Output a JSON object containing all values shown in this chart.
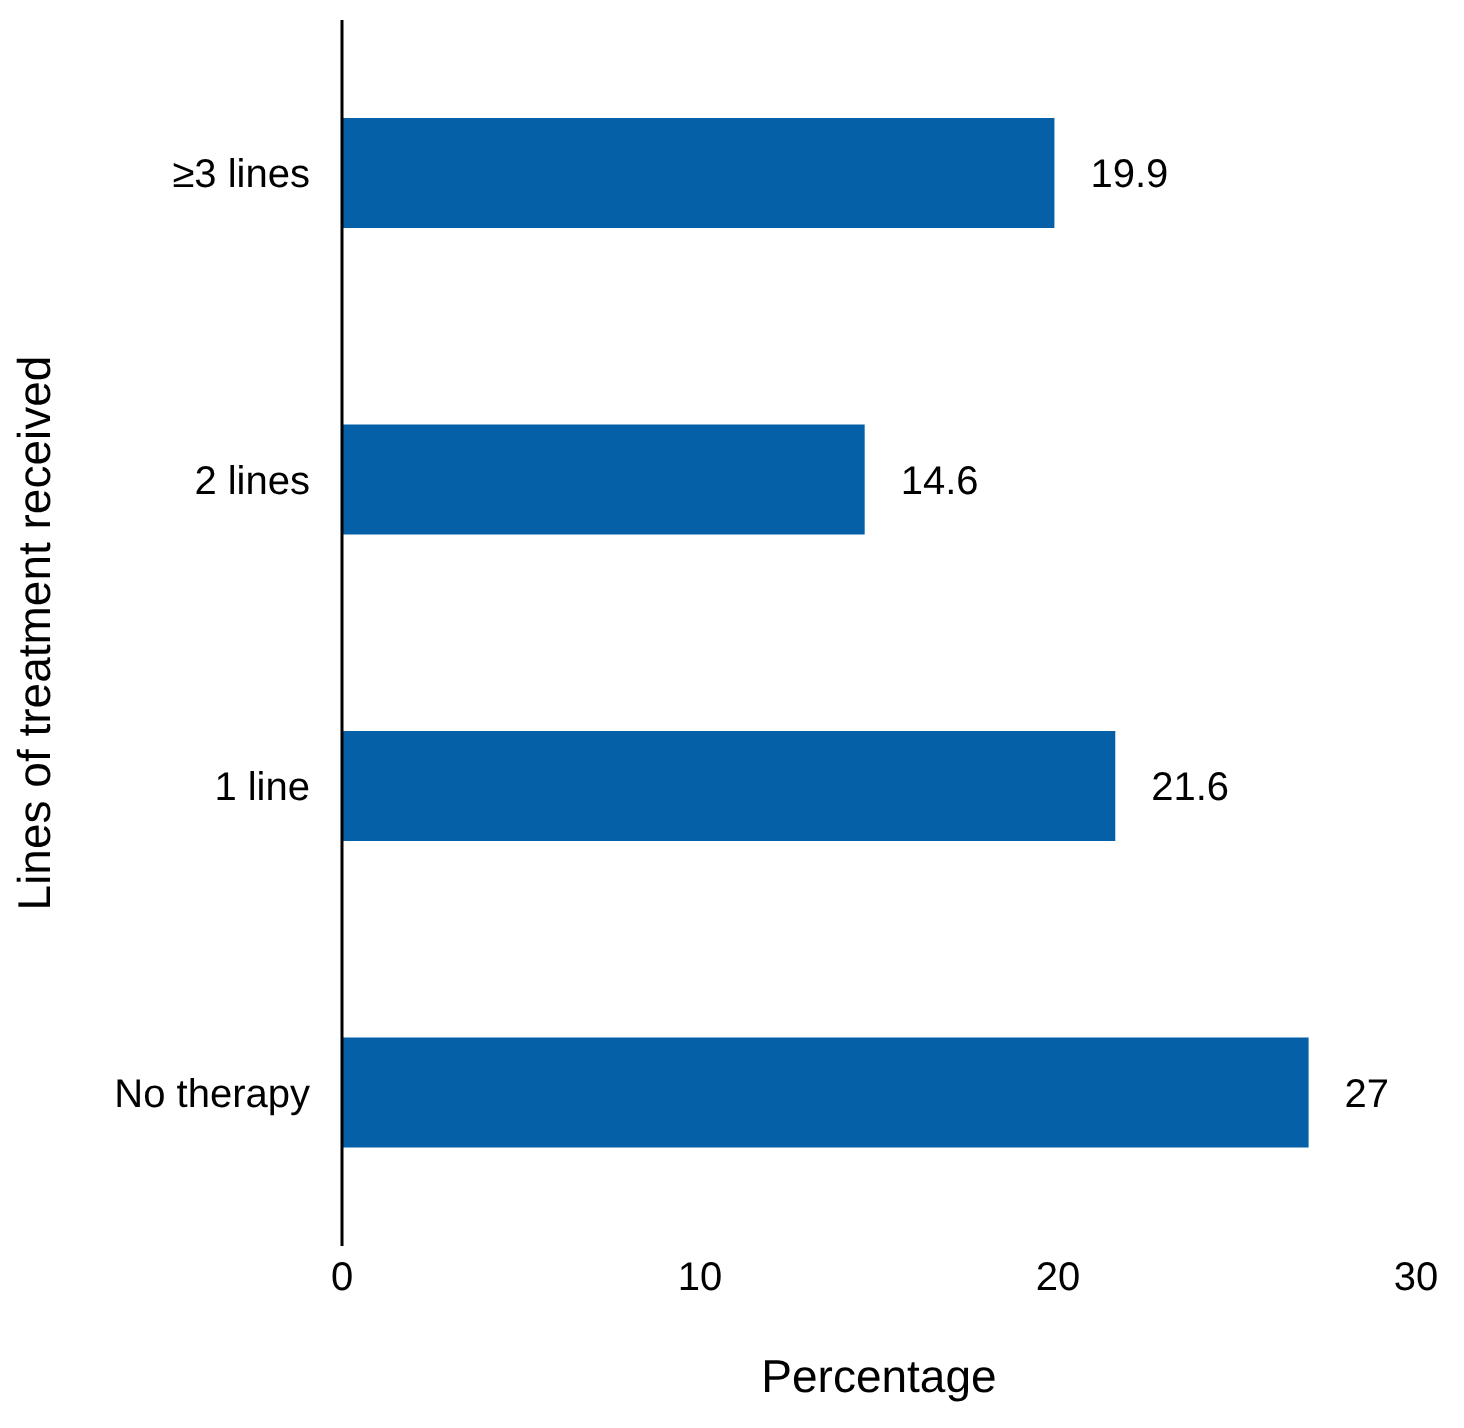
{
  "chart_data": {
    "type": "bar",
    "orientation": "horizontal",
    "xlabel": "Percentage",
    "ylabel": "Lines of treatment received",
    "categories": [
      "≥3 lines",
      "2 lines",
      "1 line",
      "No therapy"
    ],
    "values": [
      19.9,
      14.6,
      21.6,
      27
    ],
    "color": "#0560a8",
    "xlim": [
      0,
      30
    ],
    "xticks": [
      0,
      10,
      20,
      30
    ],
    "grid": false,
    "data_labels": true
  }
}
